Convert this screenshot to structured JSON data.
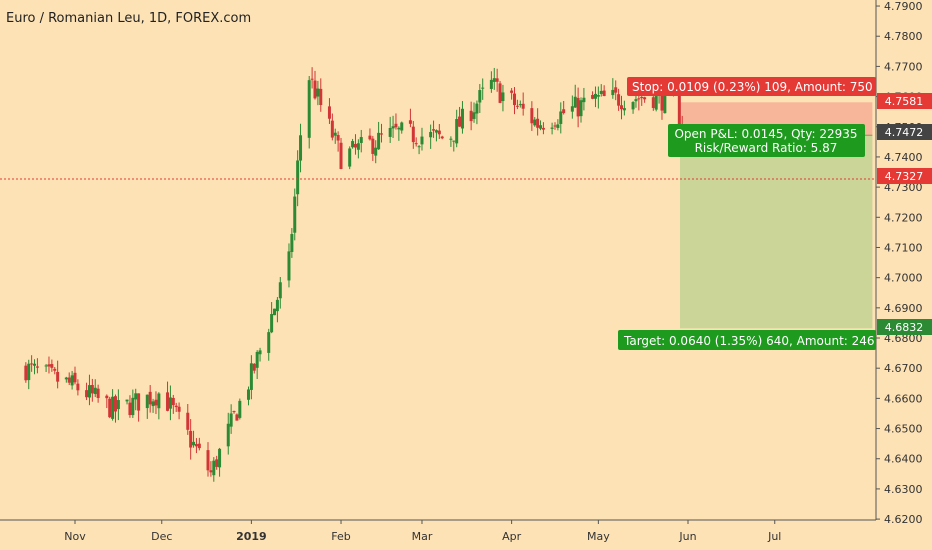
{
  "colors": {
    "background": "#fde2b6",
    "up": "#2c8a34",
    "down": "#d13535",
    "stop_zone": "#f7b59a",
    "target_zone": "#cbd597",
    "price_line": "#e53935",
    "axis_text": "#333333"
  },
  "chart_data": {
    "type": "candlestick",
    "title": "Euro / Romanian Leu, 1D, FOREX.com",
    "x_labels": [
      "Nov",
      "Dec",
      "2019",
      "Feb",
      "Mar",
      "Apr",
      "May",
      "Jun",
      "Jul"
    ],
    "y_ticks": [
      "4.7900",
      "4.7800",
      "4.7700",
      "4.7600",
      "4.7500",
      "4.7400",
      "4.7300",
      "4.7200",
      "4.7100",
      "4.7000",
      "4.6900",
      "4.6800",
      "4.6700",
      "4.6600",
      "4.6500",
      "4.6400",
      "4.6300",
      "4.6200"
    ],
    "ylim": [
      4.6197,
      4.792
    ],
    "key_points": [
      {
        "date": "2018-10-15",
        "close": 4.67
      },
      {
        "date": "2018-11-01",
        "close": 4.664
      },
      {
        "date": "2018-11-15",
        "close": 4.656
      },
      {
        "date": "2018-12-01",
        "close": 4.662
      },
      {
        "date": "2018-12-18",
        "close": 4.635
      },
      {
        "date": "2019-01-02",
        "close": 4.67
      },
      {
        "date": "2019-01-14",
        "close": 4.705
      },
      {
        "date": "2019-01-20",
        "close": 4.769
      },
      {
        "date": "2019-02-01",
        "close": 4.74
      },
      {
        "date": "2019-02-20",
        "close": 4.748
      },
      {
        "date": "2019-03-10",
        "close": 4.746
      },
      {
        "date": "2019-03-25",
        "close": 4.764
      },
      {
        "date": "2019-04-10",
        "close": 4.751
      },
      {
        "date": "2019-04-30",
        "close": 4.759
      },
      {
        "date": "2019-05-20",
        "close": 4.76
      },
      {
        "date": "2019-05-28",
        "close": 4.758
      },
      {
        "date": "2019-06-03",
        "close": 4.7327
      }
    ],
    "current_price": "4.7327",
    "position": {
      "entry": "4.7472",
      "stop_price": "4.7581",
      "target_price": "4.6832",
      "stop_label": "Stop: 0.0109 (0.23%) 109, Amount: 750",
      "open_pnl_label": "Open P&L: 0.0145, Qty: 22935",
      "risk_reward_label": "Risk/Reward Ratio: 5.87",
      "target_label": "Target: 0.0640 (1.35%) 640, Amount: 246"
    }
  }
}
